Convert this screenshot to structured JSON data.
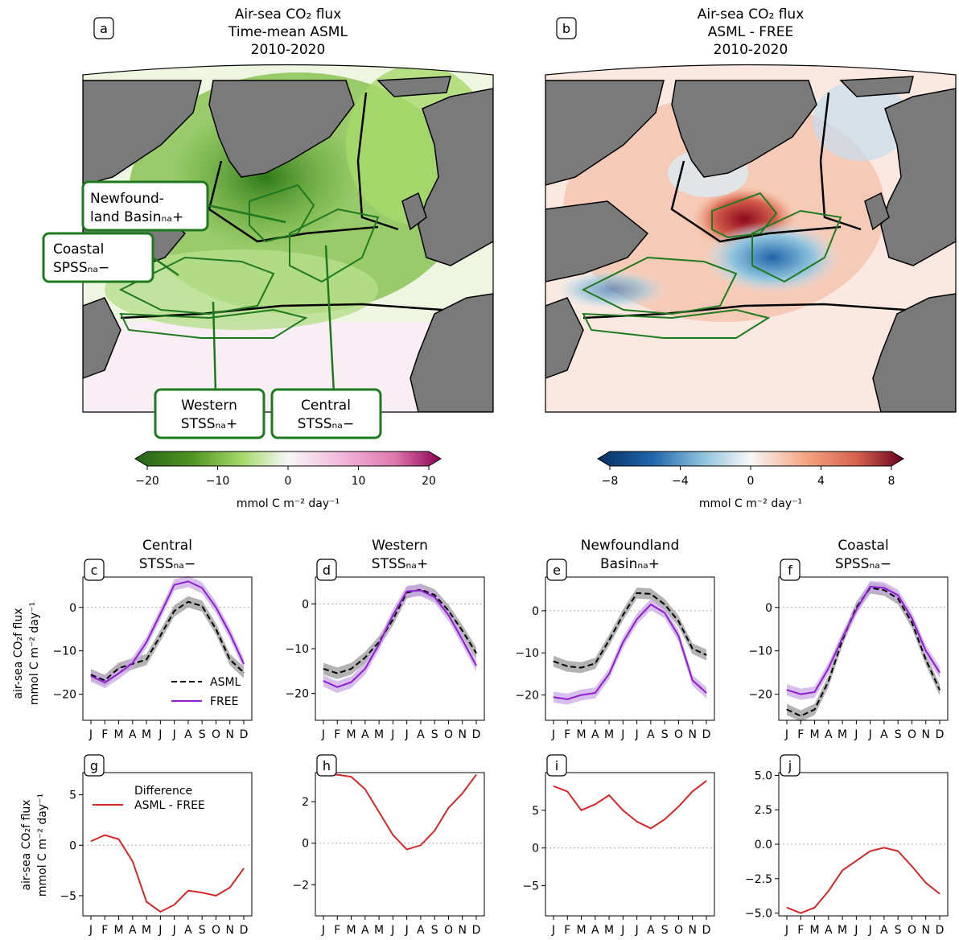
{
  "maps": {
    "a": {
      "letter": "a",
      "title": [
        "Air-sea CO₂ flux",
        "Time-mean ASML",
        "2010-2020"
      ]
    },
    "b": {
      "letter": "b",
      "title": [
        "Air-sea CO₂ flux",
        "ASML - FREE",
        "2010-2020"
      ]
    },
    "region_labels": [
      [
        "Newfound-",
        "land Basinₙₐ+"
      ],
      [
        "Coastal",
        "SPSSₙₐ−"
      ],
      [
        "Western",
        "STSSₙₐ+"
      ],
      [
        "Central",
        "STSSₙₐ−"
      ]
    ],
    "region_border_color": "#1f7a1f",
    "land_color": "#7a7a7a"
  },
  "colorbars": {
    "a": {
      "ticks": [
        "−20",
        "−10",
        "0",
        "10",
        "20"
      ],
      "label": "mmol C m⁻² day⁻¹",
      "range": [
        -20,
        20
      ],
      "cmap": "PiYG"
    },
    "b": {
      "ticks": [
        "−8",
        "−4",
        "0",
        "4",
        "8"
      ],
      "label": "mmol C m⁻² day⁻¹",
      "range": [
        -8,
        8
      ],
      "cmap": "RdBu_r"
    }
  },
  "axis_labels": {
    "top_row_ylabel": [
      "air-sea CO₂f flux",
      "mmol C m⁻² day⁻¹"
    ],
    "bottom_row_ylabel": [
      "air-sea CO₂f flux",
      "mmol C m⁻² day⁻¹"
    ]
  },
  "colors": {
    "asml": "#000000",
    "free": "#8e1ecf",
    "diff": "#d62728",
    "asml_band": "#9a9a9a",
    "free_band": "#c9a8e6"
  },
  "chart_data": [
    {
      "panel": "c",
      "type": "line",
      "title": [
        "Central",
        "STSSₙₐ−"
      ],
      "x": [
        "J",
        "F",
        "M",
        "A",
        "M",
        "J",
        "J",
        "A",
        "S",
        "O",
        "N",
        "D"
      ],
      "ylim": [
        -26,
        7
      ],
      "yticks": [
        0,
        -10,
        -20
      ],
      "legend": {
        "position": "lower-right",
        "entries": [
          "ASML",
          "FREE"
        ]
      },
      "series": [
        {
          "name": "ASML",
          "style": "dashed",
          "values": [
            -15.5,
            -16.8,
            -14,
            -13,
            -12,
            -6.5,
            -0.8,
            1.3,
            0.3,
            -5,
            -12,
            -15
          ]
        },
        {
          "name": "FREE",
          "style": "solid",
          "values": [
            -15.8,
            -17.3,
            -15.2,
            -12.8,
            -8,
            -1.5,
            5.2,
            6,
            4.5,
            0,
            -6,
            -13
          ]
        }
      ]
    },
    {
      "panel": "d",
      "type": "line",
      "title": [
        "Western",
        "STSSₙₐ+"
      ],
      "x": [
        "J",
        "F",
        "M",
        "A",
        "M",
        "J",
        "J",
        "A",
        "S",
        "O",
        "N",
        "D"
      ],
      "ylim": [
        -26,
        6
      ],
      "yticks": [
        0,
        -10,
        -20
      ],
      "series": [
        {
          "name": "ASML",
          "style": "dashed",
          "values": [
            -14.5,
            -15.5,
            -14.5,
            -12,
            -8.5,
            -3.5,
            2.5,
            3.2,
            2,
            -1.5,
            -6,
            -11
          ]
        },
        {
          "name": "FREE",
          "style": "solid",
          "values": [
            -17.2,
            -18.6,
            -17.5,
            -14.5,
            -9,
            -2.5,
            2.8,
            3,
            1.5,
            -2.5,
            -8,
            -13.8
          ]
        }
      ]
    },
    {
      "panel": "e",
      "type": "line",
      "title": [
        "Newfoundland",
        "Basinₙₐ+"
      ],
      "x": [
        "J",
        "F",
        "M",
        "A",
        "M",
        "J",
        "J",
        "A",
        "S",
        "O",
        "N",
        "D"
      ],
      "ylim": [
        -26,
        8
      ],
      "yticks": [
        0,
        -10,
        -20
      ],
      "series": [
        {
          "name": "ASML",
          "style": "dashed",
          "values": [
            -12,
            -13.2,
            -13.5,
            -12.5,
            -7,
            -1,
            4.2,
            4,
            1.5,
            -2.5,
            -9,
            -10.5
          ]
        },
        {
          "name": "FREE",
          "style": "solid",
          "values": [
            -20.5,
            -21,
            -20,
            -19.5,
            -15,
            -7.5,
            -2,
            1.5,
            -0.5,
            -6,
            -16.5,
            -19.5
          ]
        }
      ]
    },
    {
      "panel": "f",
      "type": "line",
      "title": [
        "Coastal",
        "SPSSₙₐ−"
      ],
      "x": [
        "J",
        "F",
        "M",
        "A",
        "M",
        "J",
        "J",
        "A",
        "S",
        "O",
        "N",
        "D"
      ],
      "ylim": [
        -26,
        7
      ],
      "yticks": [
        0,
        -10,
        -20
      ],
      "series": [
        {
          "name": "ASML",
          "style": "dashed",
          "values": [
            -23.5,
            -25,
            -23.5,
            -17,
            -7.5,
            0,
            4.5,
            4,
            2,
            -3.5,
            -12,
            -19
          ]
        },
        {
          "name": "FREE",
          "style": "solid",
          "values": [
            -19,
            -20,
            -19.5,
            -14,
            -7,
            -0.5,
            4.8,
            4.5,
            2.8,
            -2.5,
            -10,
            -15
          ]
        }
      ]
    },
    {
      "panel": "g",
      "type": "line",
      "x": [
        "J",
        "F",
        "M",
        "A",
        "M",
        "J",
        "J",
        "A",
        "S",
        "O",
        "N",
        "D"
      ],
      "ylim": [
        -7,
        7.2
      ],
      "yticks": [
        5,
        0,
        -5
      ],
      "legend": {
        "position": "top-left",
        "entries": [
          "Difference",
          "ASML - FREE"
        ]
      },
      "series": [
        {
          "name": "Difference ASML - FREE",
          "values": [
            0.4,
            1.0,
            0.6,
            -1.6,
            -5.6,
            -6.6,
            -5.9,
            -4.5,
            -4.7,
            -5.0,
            -4.2,
            -2.3
          ]
        }
      ]
    },
    {
      "panel": "h",
      "type": "line",
      "x": [
        "J",
        "F",
        "M",
        "A",
        "M",
        "J",
        "J",
        "A",
        "S",
        "O",
        "N",
        "D"
      ],
      "ylim": [
        -3.5,
        3.4
      ],
      "yticks": [
        2,
        0,
        -2
      ],
      "series": [
        {
          "values": [
            3.35,
            3.3,
            3.2,
            2.6,
            1.5,
            0.4,
            -0.3,
            -0.1,
            0.6,
            1.7,
            2.4,
            3.3
          ]
        }
      ]
    },
    {
      "panel": "i",
      "type": "line",
      "x": [
        "J",
        "F",
        "M",
        "A",
        "M",
        "J",
        "J",
        "A",
        "S",
        "O",
        "N",
        "D"
      ],
      "ylim": [
        -9,
        10
      ],
      "yticks": [
        5,
        0,
        -5
      ],
      "series": [
        {
          "values": [
            8.2,
            7.5,
            5.0,
            5.8,
            7.0,
            5.0,
            3.5,
            2.6,
            3.8,
            5.5,
            7.5,
            8.9
          ]
        }
      ]
    },
    {
      "panel": "j",
      "type": "line",
      "x": [
        "J",
        "F",
        "M",
        "A",
        "M",
        "J",
        "J",
        "A",
        "S",
        "O",
        "N",
        "D"
      ],
      "ylim": [
        -5.2,
        5.2
      ],
      "yticks": [
        5.0,
        2.5,
        0.0,
        -2.5,
        -5.0
      ],
      "series": [
        {
          "values": [
            -4.6,
            -5.0,
            -4.6,
            -3.4,
            -1.9,
            -1.2,
            -0.5,
            -0.25,
            -0.5,
            -1.6,
            -2.8,
            -3.6
          ]
        }
      ]
    }
  ]
}
